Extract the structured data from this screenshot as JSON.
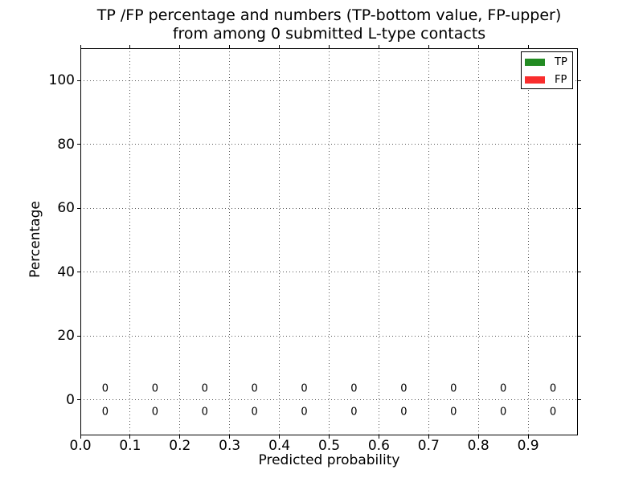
{
  "chart_data": {
    "type": "bar",
    "title_line1": "TP /FP percentage and numbers (TP-bottom value, FP-upper)",
    "title_line2": "from among 0 submitted L-type contacts",
    "xlabel": "Predicted probability",
    "ylabel": "Percentage",
    "xlim": [
      0.0,
      1.0
    ],
    "ylim": [
      -11.2,
      110.2
    ],
    "grid": true,
    "grid_style": "dotted",
    "legend_position": "upper right",
    "xticks": [
      {
        "value": 0.0,
        "label": "0.0"
      },
      {
        "value": 0.1,
        "label": "0.1"
      },
      {
        "value": 0.2,
        "label": "0.2"
      },
      {
        "value": 0.3,
        "label": "0.3"
      },
      {
        "value": 0.4,
        "label": "0.4"
      },
      {
        "value": 0.5,
        "label": "0.5"
      },
      {
        "value": 0.6,
        "label": "0.6"
      },
      {
        "value": 0.7,
        "label": "0.7"
      },
      {
        "value": 0.8,
        "label": "0.8"
      },
      {
        "value": 0.9,
        "label": "0.9"
      }
    ],
    "yticks": [
      {
        "value": 0,
        "label": "0"
      },
      {
        "value": 20,
        "label": "20"
      },
      {
        "value": 40,
        "label": "40"
      },
      {
        "value": 60,
        "label": "60"
      },
      {
        "value": 80,
        "label": "80"
      },
      {
        "value": 100,
        "label": "100"
      }
    ],
    "bin_centers": [
      0.05,
      0.15,
      0.25,
      0.35,
      0.45,
      0.55,
      0.65,
      0.75,
      0.85,
      0.95
    ],
    "bar_width": 0.1,
    "series": [
      {
        "name": "TP",
        "color": "#228b22",
        "values": [
          0,
          0,
          0,
          0,
          0,
          0,
          0,
          0,
          0,
          0
        ]
      },
      {
        "name": "FP",
        "color": "#f92d2d",
        "values": [
          0,
          0,
          0,
          0,
          0,
          0,
          0,
          0,
          0,
          0
        ]
      }
    ],
    "annotations": {
      "fp_upper_labels": [
        "0",
        "0",
        "0",
        "0",
        "0",
        "0",
        "0",
        "0",
        "0",
        "0"
      ],
      "tp_bottom_labels": [
        "0",
        "0",
        "0",
        "0",
        "0",
        "0",
        "0",
        "0",
        "0",
        "0"
      ],
      "fp_row_y": 3.3,
      "tp_row_y": -3.8
    }
  }
}
